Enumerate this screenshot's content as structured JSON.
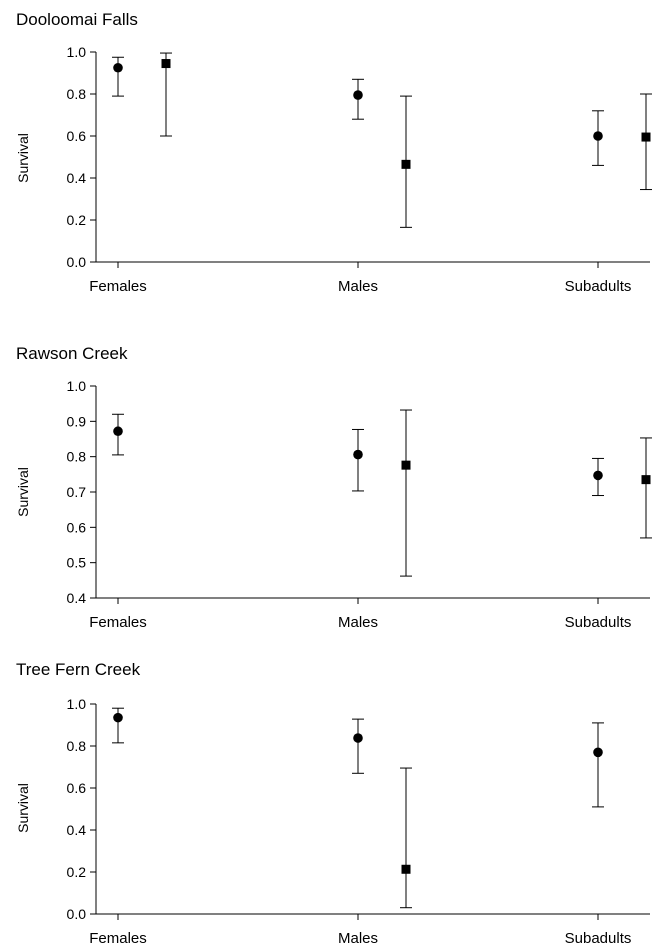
{
  "chart_data": [
    {
      "type": "scatter",
      "title": "Dooloomai Falls",
      "ylabel": "Survival",
      "ylim": [
        0.0,
        1.0
      ],
      "yticks": [
        "0.0",
        "0.2",
        "0.4",
        "0.6",
        "0.8",
        "1.0"
      ],
      "categories": [
        "Females",
        "Males",
        "Subadults"
      ],
      "series": [
        {
          "marker": "circle",
          "values": [
            0.925,
            0.795,
            0.6
          ],
          "lower": [
            0.79,
            0.68,
            0.46
          ],
          "upper": [
            0.975,
            0.87,
            0.72
          ]
        },
        {
          "marker": "square",
          "values": [
            0.945,
            0.465,
            0.595
          ],
          "lower": [
            0.6,
            0.165,
            0.345
          ],
          "upper": [
            0.995,
            0.79,
            0.8
          ]
        }
      ]
    },
    {
      "type": "scatter",
      "title": "Rawson Creek",
      "ylabel": "Survival",
      "ylim": [
        0.4,
        1.0
      ],
      "yticks": [
        "0.4",
        "0.5",
        "0.6",
        "0.7",
        "0.8",
        "0.9",
        "1.0"
      ],
      "categories": [
        "Females",
        "Males",
        "Subadults"
      ],
      "series": [
        {
          "marker": "circle",
          "values": [
            0.872,
            0.806,
            0.747
          ],
          "lower": [
            0.805,
            0.703,
            0.69
          ],
          "upper": [
            0.92,
            0.877,
            0.795
          ]
        },
        {
          "marker": "square",
          "values": [
            null,
            0.776,
            0.735
          ],
          "lower": [
            null,
            0.462,
            0.57
          ],
          "upper": [
            null,
            0.932,
            0.853
          ]
        }
      ]
    },
    {
      "type": "scatter",
      "title": "Tree Fern Creek",
      "ylabel": "Survival",
      "ylim": [
        0.0,
        1.0
      ],
      "yticks": [
        "0.0",
        "0.2",
        "0.4",
        "0.6",
        "0.8",
        "1.0"
      ],
      "categories": [
        "Females",
        "Males",
        "Subadults"
      ],
      "series": [
        {
          "marker": "circle",
          "values": [
            0.935,
            0.838,
            0.77
          ],
          "lower": [
            0.815,
            0.67,
            0.51
          ],
          "upper": [
            0.98,
            0.928,
            0.91
          ]
        },
        {
          "marker": "square",
          "values": [
            null,
            0.213,
            null
          ],
          "lower": [
            null,
            0.03,
            null
          ],
          "upper": [
            null,
            0.695,
            null
          ]
        }
      ]
    }
  ]
}
